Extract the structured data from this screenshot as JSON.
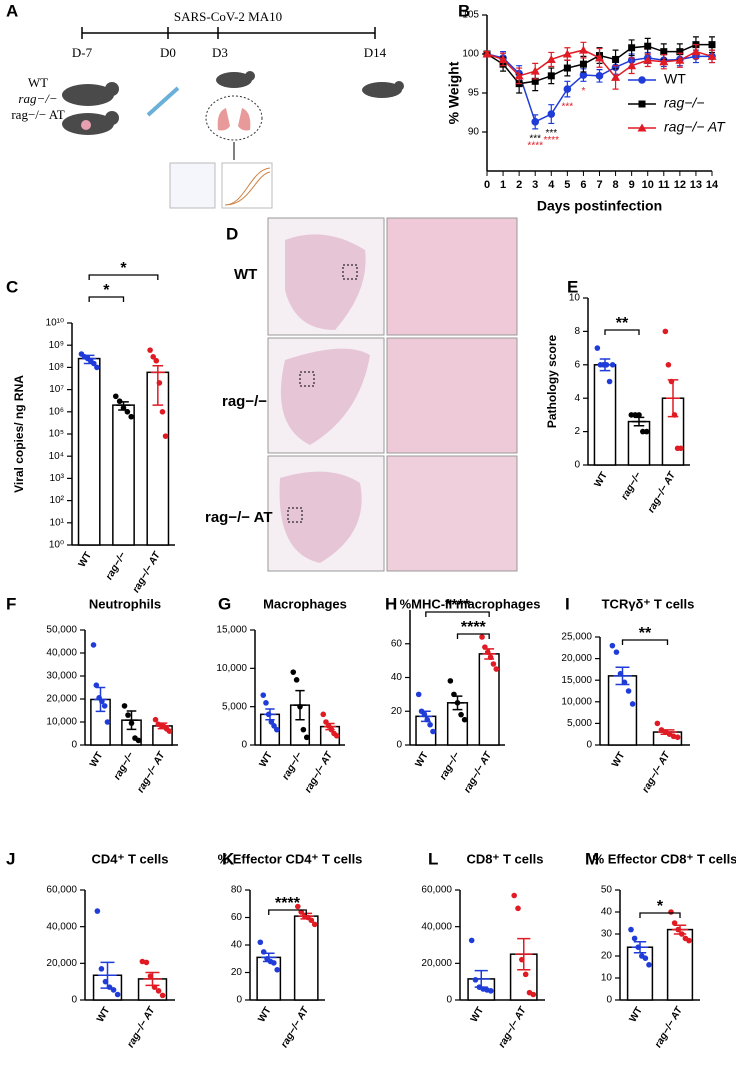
{
  "timeline": {
    "panel": "A",
    "title": "SARS-CoV-2 MA10",
    "days": [
      "D-7",
      "D0",
      "D3",
      "D14"
    ],
    "groups": [
      "WT",
      "rag−/−",
      "rag−/− AT"
    ]
  },
  "histology": {
    "panel": "D",
    "rows": [
      "WT",
      "rag−/−",
      "rag−/− AT"
    ]
  },
  "chart_data": [
    {
      "type": "line",
      "panel": "B",
      "ylabel": "% Weight",
      "xlabel": "Days postinfection",
      "x": [
        0,
        1,
        2,
        3,
        4,
        5,
        6,
        7,
        8,
        9,
        10,
        11,
        12,
        13,
        14
      ],
      "xlim": [
        0,
        14
      ],
      "xticks": [
        0,
        1,
        2,
        3,
        4,
        5,
        6,
        7,
        8,
        9,
        10,
        11,
        12,
        13,
        14
      ],
      "ylim": [
        85,
        105
      ],
      "yticks": [
        90,
        95,
        100,
        105
      ],
      "legend": "right",
      "series": [
        {
          "name": "WT",
          "color": "#1f3cd9",
          "marker": "circle",
          "values": [
            100,
            99.5,
            97.5,
            91.3,
            92.3,
            95.5,
            97.3,
            97.2,
            98.3,
            99.2,
            99.5,
            99.2,
            99.3,
            99.7,
            99.7
          ],
          "errors": [
            0.3,
            0.8,
            1,
            0.9,
            1.2,
            1,
            0.8,
            0.8,
            0.9,
            0.8,
            0.7,
            0.8,
            0.8,
            0.8,
            0.8
          ]
        },
        {
          "name": "rag−/−",
          "color": "#000000",
          "marker": "square",
          "values": [
            100,
            98.7,
            96.2,
            96.5,
            97.2,
            98.2,
            98.7,
            99.8,
            99.3,
            100.8,
            101,
            100.3,
            100.3,
            101.2,
            101.2
          ],
          "errors": [
            0.3,
            0.9,
            1.2,
            1.2,
            1,
            1,
            1,
            1,
            1.2,
            1,
            1,
            1,
            1,
            1,
            1
          ]
        },
        {
          "name": "rag−/− AT",
          "color": "#e01b24",
          "marker": "triangle",
          "values": [
            100,
            99.3,
            97.2,
            97.8,
            99.3,
            100,
            100.5,
            99.5,
            97,
            98.5,
            99.2,
            99,
            99.2,
            100.3,
            99.7
          ],
          "errors": [
            0.3,
            0.8,
            1,
            1,
            0.9,
            0.8,
            1,
            1.2,
            1.5,
            1,
            0.8,
            0.9,
            0.9,
            0.9,
            0.8
          ]
        }
      ],
      "annotations": [
        {
          "x": 3,
          "text": "***",
          "color": "#000000"
        },
        {
          "x": 3,
          "text": "****",
          "color": "#e01b24"
        },
        {
          "x": 4,
          "text": "***",
          "color": "#000000"
        },
        {
          "x": 4,
          "text": "****",
          "color": "#e01b24"
        },
        {
          "x": 5,
          "text": "***",
          "color": "#e01b24"
        },
        {
          "x": 6,
          "text": "*",
          "color": "#e01b24"
        }
      ]
    },
    {
      "type": "bar",
      "panel": "C",
      "ylabel": "Viral copies/ ng RNA",
      "log": true,
      "categories": [
        "WT",
        "rag−/−",
        "rag−/− AT"
      ],
      "colors": [
        "#1f3cd9",
        "#000000",
        "#e01b24"
      ],
      "values": [
        250000000,
        2000000,
        60000000
      ],
      "errors": [
        100000000,
        800000,
        58000000
      ],
      "points": [
        [
          400000000,
          300000000,
          250000000,
          200000000,
          150000000,
          100000000
        ],
        [
          5000000,
          3000000,
          1500000,
          1000000,
          600000
        ],
        [
          600000000,
          300000000,
          200000000,
          20000000,
          1000000,
          80000
        ]
      ],
      "ylim": [
        1,
        10000000000
      ],
      "yticks": [
        {
          "value": 1,
          "label": "10⁰"
        },
        {
          "value": 10,
          "label": "10¹"
        },
        {
          "value": 100,
          "label": "10²"
        },
        {
          "value": 1000,
          "label": "10³"
        },
        {
          "value": 10000,
          "label": "10⁴"
        },
        {
          "value": 100000,
          "label": "10⁵"
        },
        {
          "value": 1000000,
          "label": "10⁶"
        },
        {
          "value": 10000000,
          "label": "10⁷"
        },
        {
          "value": 100000000,
          "label": "10⁸"
        },
        {
          "value": 1000000000,
          "label": "10⁹"
        },
        {
          "value": 10000000000,
          "label": "10¹⁰"
        }
      ],
      "significance": [
        {
          "from": 0,
          "to": 1,
          "label": "*"
        },
        {
          "from": 0,
          "to": 2,
          "label": "*"
        }
      ]
    },
    {
      "type": "bar",
      "panel": "E",
      "ylabel": "Pathology score",
      "categories": [
        "WT",
        "rag−/−",
        "rag−/− AT"
      ],
      "colors": [
        "#1f3cd9",
        "#000000",
        "#e01b24"
      ],
      "values": [
        6,
        2.6,
        4
      ],
      "errors": [
        0.35,
        0.25,
        1.1
      ],
      "points": [
        [
          7,
          6,
          6,
          6,
          5,
          6
        ],
        [
          3,
          3,
          3,
          2,
          2
        ],
        [
          8,
          6,
          5,
          3,
          1,
          1
        ]
      ],
      "ylim": [
        0,
        10
      ],
      "yticks": [
        0,
        2,
        4,
        6,
        8,
        10
      ],
      "significance": [
        {
          "from": 0,
          "to": 1,
          "label": "**"
        }
      ]
    },
    {
      "type": "bar",
      "panel": "F",
      "title": "Neutrophils",
      "categories": [
        "WT",
        "rag−/−",
        "rag−/− AT"
      ],
      "colors": [
        "#1f3cd9",
        "#000000",
        "#e01b24"
      ],
      "values": [
        19800,
        10800,
        8300
      ],
      "errors": [
        5200,
        4000,
        1200
      ],
      "points": [
        [
          43500,
          26000,
          20500,
          19000,
          17000,
          10000
        ],
        [
          17000,
          13000,
          9500,
          3000,
          2000
        ],
        [
          11000,
          9000,
          8500,
          8000,
          7000,
          6000
        ]
      ],
      "ylim": [
        0,
        50000
      ],
      "yticks": [
        0,
        {
          "value": 10000,
          "label": "10,000"
        },
        {
          "value": 20000,
          "label": "20,000"
        },
        {
          "value": 30000,
          "label": "30,000"
        },
        {
          "value": 40000,
          "label": "40,000"
        },
        {
          "value": 50000,
          "label": "50,000"
        }
      ],
      "significance": []
    },
    {
      "type": "bar",
      "panel": "G",
      "title": "Macrophages",
      "categories": [
        "WT",
        "rag−/−",
        "rag−/− AT"
      ],
      "colors": [
        "#1f3cd9",
        "#000000",
        "#e01b24"
      ],
      "values": [
        4000,
        5200,
        2400
      ],
      "errors": [
        700,
        1900,
        400
      ],
      "points": [
        [
          6500,
          5500,
          4000,
          3000,
          2500,
          2000
        ],
        [
          9500,
          8500,
          5000,
          2000,
          1000
        ],
        [
          4000,
          3000,
          2500,
          2000,
          1500,
          1200
        ]
      ],
      "ylim": [
        0,
        15000
      ],
      "yticks": [
        0,
        {
          "value": 5000,
          "label": "5,000"
        },
        {
          "value": 10000,
          "label": "10,000"
        },
        {
          "value": 15000,
          "label": "15,000"
        }
      ],
      "significance": []
    },
    {
      "type": "bar",
      "panel": "H",
      "title": "%MHC-II macrophages",
      "categories": [
        "WT",
        "rag−/−",
        "rag−/− AT"
      ],
      "colors": [
        "#1f3cd9",
        "#000000",
        "#e01b24"
      ],
      "values": [
        17,
        25,
        54
      ],
      "errors": [
        3,
        4,
        3
      ],
      "points": [
        [
          30,
          20,
          18,
          15,
          12,
          8
        ],
        [
          38,
          30,
          25,
          18,
          15
        ],
        [
          64,
          58,
          55,
          52,
          48,
          45
        ]
      ],
      "ylim": [
        0,
        80
      ],
      "yticks": [
        0,
        20,
        40,
        60
      ],
      "significance": [
        {
          "from": 1,
          "to": 2,
          "label": "****"
        },
        {
          "from": 0,
          "to": 2,
          "label": "****"
        }
      ]
    },
    {
      "type": "bar",
      "panel": "I",
      "title": "TCRγδ⁺ T cells",
      "categories": [
        "WT",
        "rag−/− AT"
      ],
      "colors": [
        "#1f3cd9",
        "#e01b24"
      ],
      "values": [
        16000,
        3000
      ],
      "errors": [
        2000,
        500
      ],
      "points": [
        [
          23000,
          21500,
          16500,
          14500,
          12500,
          9500
        ],
        [
          5000,
          3500,
          3000,
          2500,
          2000,
          1800
        ]
      ],
      "ylim": [
        0,
        25000
      ],
      "yticks": [
        0,
        {
          "value": 5000,
          "label": "5,000"
        },
        {
          "value": 10000,
          "label": "10,000"
        },
        {
          "value": 15000,
          "label": "15,000"
        },
        {
          "value": 20000,
          "label": "20,000"
        },
        {
          "value": 25000,
          "label": "25,000"
        }
      ],
      "significance": [
        {
          "from": 0,
          "to": 1,
          "label": "**"
        }
      ]
    },
    {
      "type": "bar",
      "panel": "J",
      "title": "CD4⁺ T cells",
      "categories": [
        "WT",
        "rag−/− AT"
      ],
      "colors": [
        "#1f3cd9",
        "#e01b24"
      ],
      "values": [
        13500,
        11500
      ],
      "errors": [
        7000,
        3500
      ],
      "points": [
        [
          48500,
          17000,
          10000,
          7000,
          5500,
          3000
        ],
        [
          21000,
          20500,
          13000,
          7000,
          5000,
          2500
        ]
      ],
      "ylim": [
        0,
        60000
      ],
      "yticks": [
        0,
        {
          "value": 20000,
          "label": "20,000"
        },
        {
          "value": 40000,
          "label": "40,000"
        },
        {
          "value": 60000,
          "label": "60,000"
        }
      ],
      "significance": []
    },
    {
      "type": "bar",
      "panel": "K",
      "title": "% Effector CD4⁺ T cells",
      "categories": [
        "WT",
        "rag−/− AT"
      ],
      "colors": [
        "#1f3cd9",
        "#e01b24"
      ],
      "values": [
        31,
        61
      ],
      "errors": [
        3,
        2
      ],
      "points": [
        [
          42,
          35,
          30,
          28,
          27,
          22
        ],
        [
          68,
          64,
          61,
          60,
          58,
          55
        ]
      ],
      "ylim": [
        0,
        80
      ],
      "yticks": [
        0,
        20,
        40,
        60,
        80
      ],
      "significance": [
        {
          "from": 0,
          "to": 1,
          "label": "****"
        }
      ]
    },
    {
      "type": "bar",
      "panel": "L",
      "title": "CD8⁺ T cells",
      "categories": [
        "WT",
        "rag−/− AT"
      ],
      "colors": [
        "#1f3cd9",
        "#e01b24"
      ],
      "values": [
        11500,
        25000
      ],
      "errors": [
        4500,
        8500
      ],
      "points": [
        [
          32500,
          11000,
          7000,
          6000,
          5500,
          5000
        ],
        [
          57000,
          50000,
          22000,
          14000,
          4000,
          3000
        ]
      ],
      "ylim": [
        0,
        60000
      ],
      "yticks": [
        0,
        {
          "value": 20000,
          "label": "20,000"
        },
        {
          "value": 40000,
          "label": "40,000"
        },
        {
          "value": 60000,
          "label": "60,000"
        }
      ],
      "significance": []
    },
    {
      "type": "bar",
      "panel": "M",
      "title": "% Effector CD8⁺ T cells",
      "categories": [
        "WT",
        "rag−/− AT"
      ],
      "colors": [
        "#1f3cd9",
        "#e01b24"
      ],
      "values": [
        24,
        32
      ],
      "errors": [
        2.5,
        2
      ],
      "points": [
        [
          32,
          28,
          24,
          20,
          19,
          16
        ],
        [
          40,
          35,
          32,
          30,
          28,
          27
        ]
      ],
      "ylim": [
        0,
        50
      ],
      "yticks": [
        0,
        10,
        20,
        30,
        40,
        50
      ],
      "significance": [
        {
          "from": 0,
          "to": 1,
          "label": "*"
        }
      ]
    }
  ]
}
